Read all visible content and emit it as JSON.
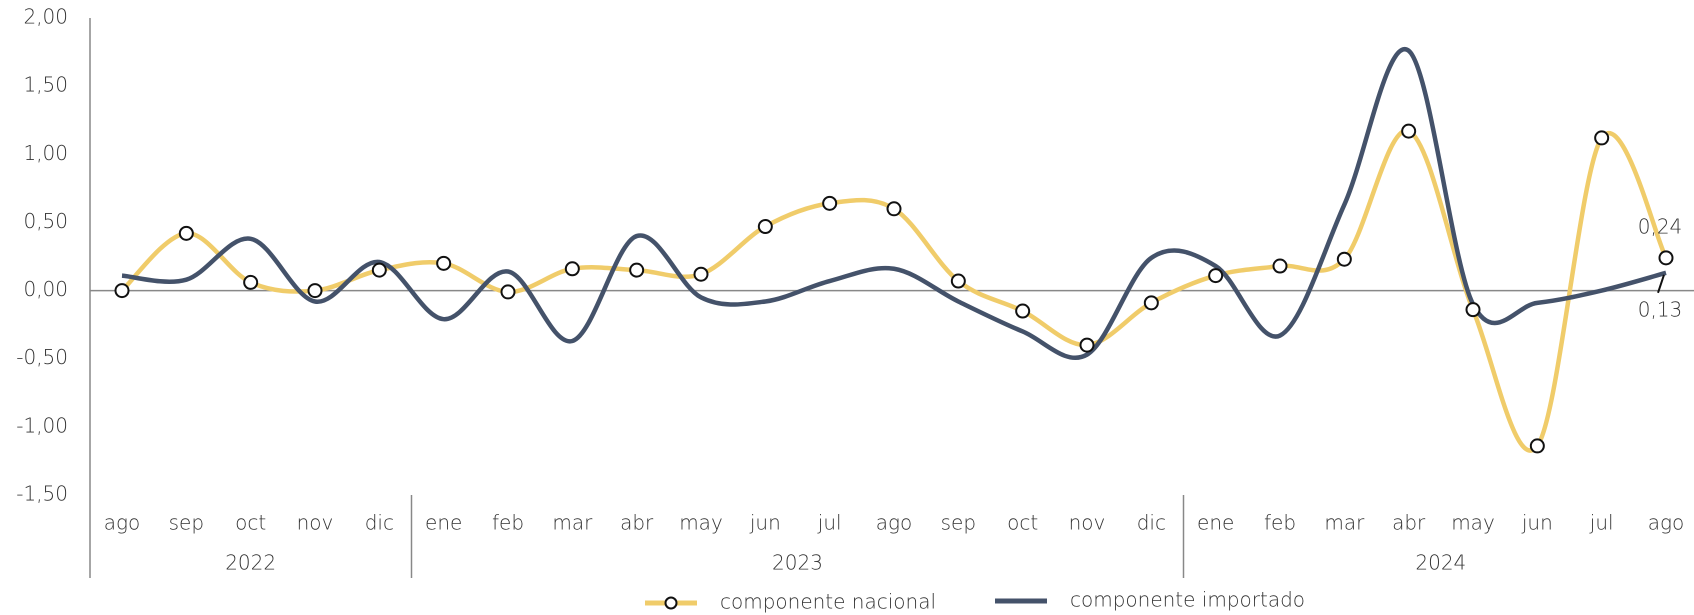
{
  "chart_data": {
    "type": "line",
    "categories": [
      "ago",
      "sep",
      "oct",
      "nov",
      "dic",
      "ene",
      "feb",
      "mar",
      "abr",
      "may",
      "jun",
      "jul",
      "ago",
      "sep",
      "oct",
      "nov",
      "dic",
      "ene",
      "feb",
      "mar",
      "abr",
      "may",
      "jun",
      "jul",
      "ago"
    ],
    "category_groups": [
      {
        "label": "2022",
        "count": 5
      },
      {
        "label": "2023",
        "count": 12
      },
      {
        "label": "2024",
        "count": 8
      }
    ],
    "series": [
      {
        "name": "componente nacional",
        "color": "#f0cc6a",
        "marker": "circle",
        "values": [
          0.0,
          0.42,
          0.06,
          0.0,
          0.15,
          0.2,
          -0.01,
          0.16,
          0.15,
          0.12,
          0.47,
          0.64,
          0.6,
          0.07,
          -0.15,
          -0.4,
          -0.09,
          0.11,
          0.18,
          0.23,
          1.17,
          -0.14,
          -1.14,
          1.12,
          0.24
        ],
        "value_labels": [
          null,
          null,
          null,
          null,
          null,
          null,
          null,
          null,
          null,
          null,
          null,
          null,
          null,
          null,
          null,
          null,
          null,
          null,
          null,
          null,
          null,
          null,
          null,
          null,
          "0,24"
        ]
      },
      {
        "name": "componente importado",
        "color": "#44526a",
        "marker": null,
        "values": [
          0.11,
          0.08,
          0.38,
          -0.08,
          0.21,
          -0.21,
          0.14,
          -0.37,
          0.4,
          -0.05,
          -0.08,
          0.07,
          0.16,
          -0.08,
          -0.3,
          -0.47,
          0.24,
          0.18,
          -0.33,
          0.63,
          1.76,
          -0.1,
          -0.09,
          0.0,
          0.13
        ],
        "value_labels": [
          null,
          null,
          null,
          null,
          null,
          null,
          null,
          null,
          null,
          null,
          null,
          null,
          null,
          null,
          null,
          null,
          null,
          null,
          null,
          null,
          null,
          null,
          null,
          null,
          "0,13"
        ]
      }
    ],
    "ylim": [
      -1.5,
      2.0
    ],
    "yticks": [
      {
        "value": -1.5,
        "label": "-1,50"
      },
      {
        "value": -1.0,
        "label": "-1,00"
      },
      {
        "value": -0.5,
        "label": "-0,50"
      },
      {
        "value": 0,
        "label": "0,00"
      },
      {
        "value": 0.5,
        "label": "0,50"
      },
      {
        "value": 1.0,
        "label": "1,00"
      },
      {
        "value": 1.5,
        "label": "1,50"
      },
      {
        "value": 2.0,
        "label": "2,00"
      }
    ],
    "grid": false,
    "legend": "bottom"
  }
}
